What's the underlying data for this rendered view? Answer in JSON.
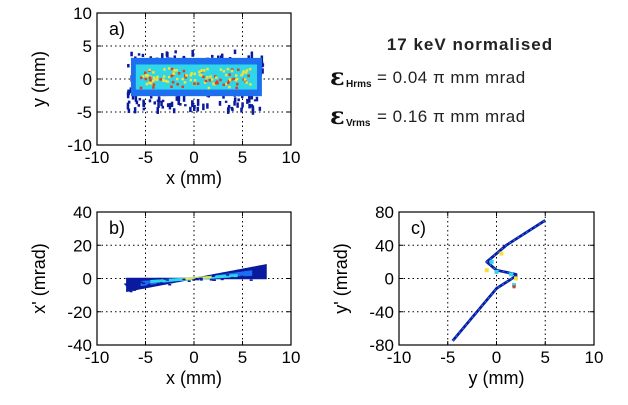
{
  "annotation": {
    "title": "17 keV normalised",
    "eps_symbol": "ε",
    "h_sub": "Hrms",
    "h_value": "= 0.04 π mm mrad",
    "v_sub": "Vrms",
    "v_value": "= 0.16 π mm mrad"
  },
  "colors": {
    "low": "#0a1a9e",
    "mid": "#1e6ef0",
    "cyan": "#2fd6e8",
    "yellow": "#f2e23a",
    "red": "#e23a1e"
  },
  "chart_data": [
    {
      "type": "heatmap",
      "panel_label": "a)",
      "xlabel": "x (mm)",
      "ylabel": "y (mm)",
      "xlim": [
        -10,
        10
      ],
      "ylim": [
        -10,
        10
      ],
      "xticks": [
        -10,
        -5,
        0,
        5,
        10
      ],
      "yticks": [
        -10,
        -5,
        0,
        5,
        10
      ],
      "grid": true,
      "distribution": {
        "x_range": [
          -7,
          7
        ],
        "y_range": [
          -4.5,
          4.5
        ],
        "core_x_range": [
          -6,
          6.5
        ],
        "core_y_range": [
          -1.5,
          2
        ]
      }
    },
    {
      "type": "heatmap",
      "panel_label": "b)",
      "xlabel": "x (mm)",
      "ylabel": "x' (mrad)",
      "xlim": [
        -10,
        10
      ],
      "ylim": [
        -40,
        40
      ],
      "xticks": [
        -10,
        -5,
        0,
        5,
        10
      ],
      "yticks": [
        -40,
        -20,
        0,
        20,
        40
      ],
      "grid": true,
      "distribution": {
        "x_range": [
          -7,
          7.5
        ],
        "waist_at": 0,
        "spread_at_edge": 7
      }
    },
    {
      "type": "heatmap",
      "panel_label": "c)",
      "xlabel": "y (mm)",
      "ylabel": "y' (mrad)",
      "xlim": [
        -10,
        10
      ],
      "ylim": [
        -80,
        80
      ],
      "xticks": [
        -10,
        -5,
        0,
        5,
        10
      ],
      "yticks": [
        -80,
        -40,
        0,
        40,
        80
      ],
      "grid": true,
      "distribution": {
        "path": [
          [
            -4.5,
            -75
          ],
          [
            -2,
            -40
          ],
          [
            0,
            -12
          ],
          [
            2,
            3
          ],
          [
            2,
            5
          ],
          [
            0,
            10
          ],
          [
            -1,
            20
          ],
          [
            1,
            40
          ],
          [
            5,
            70
          ]
        ]
      }
    }
  ]
}
